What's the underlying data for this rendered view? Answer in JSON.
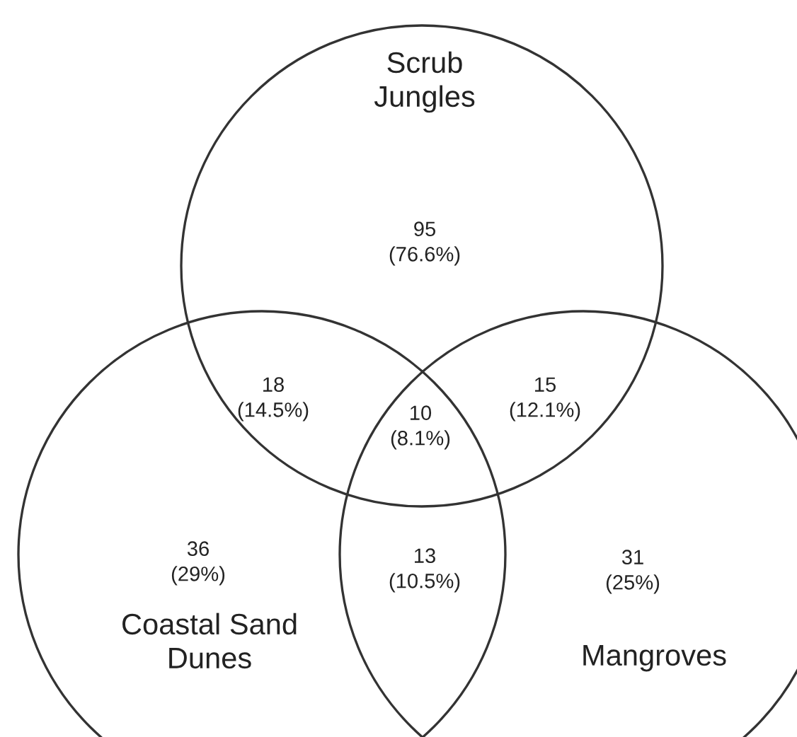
{
  "chart_data": {
    "type": "other",
    "annotations": [
      "Scrub\nJungles",
      "Coastal Sand\nDunes",
      "Mangroves"
    ],
    "categories": [
      null,
      null,
      null,
      null,
      null,
      null,
      null
    ],
    "values": [
      95,
      18,
      15,
      10,
      36,
      13,
      31
    ],
    "value_labels": [
      "95\n(76.6%)",
      "18\n(14.5%)",
      "15\n(12.1%)",
      "10\n(8.1%)",
      "36\n(29%)",
      "13\n(10.5%)",
      "31\n(25%)"
    ]
  }
}
